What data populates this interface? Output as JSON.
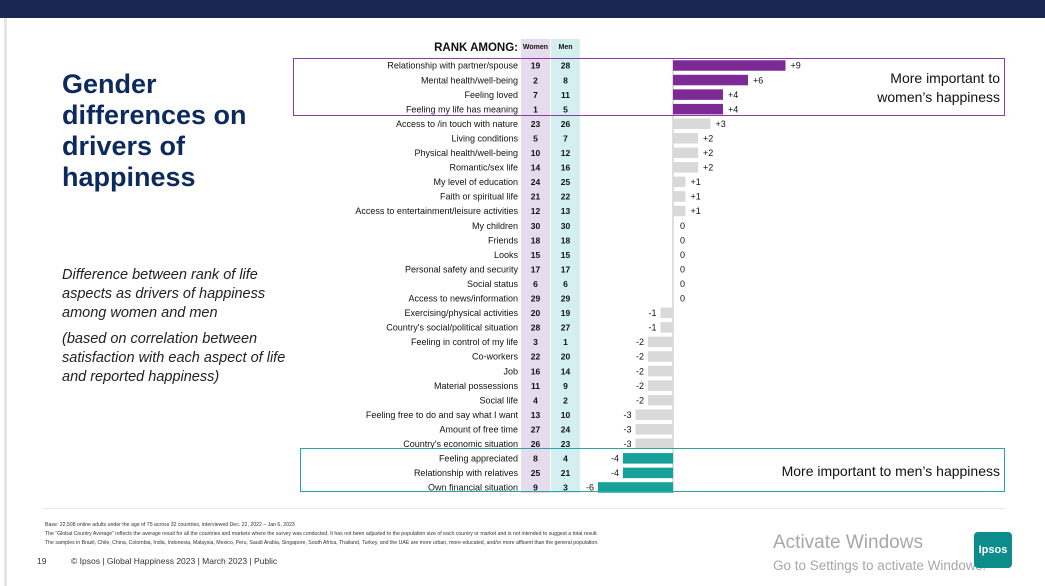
{
  "slide": {
    "title": "Gender differences on drivers of happiness",
    "description": "Difference between rank of life aspects as drivers of happiness among women and men",
    "description_note": "(based on correlation between satisfaction with each aspect of life and reported happiness)",
    "rank_header": "RANK AMONG:",
    "col_women": "Women",
    "col_men": "Men",
    "note_women": "More important to women’s happiness",
    "note_men": "More important to men’s happiness"
  },
  "colors": {
    "women": "#7b2a96",
    "men": "#17a19b",
    "neutral": "#d9d9d9"
  },
  "chart_data": {
    "type": "bar",
    "orientation": "horizontal",
    "categories": [
      "Relationship with partner/spouse",
      "Mental health/well-being",
      "Feeling loved",
      "Feeling my life has meaning",
      "Access to /in touch with nature",
      "Living conditions",
      "Physical health/well-being",
      "Romantic/sex life",
      "My level of education",
      "Faith or spiritual life",
      "Access to entertainment/leisure activities",
      "My children",
      "Friends",
      "Looks",
      "Personal safety and security",
      "Social status",
      "Access to news/information",
      "Exercising/physical activities",
      "Country's social/political situation",
      "Feeling in control of my life",
      "Co-workers",
      "Job",
      "Material possessions",
      "Social life",
      "Feeling free to do and say what I want",
      "Amount of free time",
      "Country's economic situation",
      "Feeling appreciated",
      "Relationship with relatives",
      "Own financial situation"
    ],
    "rank_women": [
      19,
      2,
      7,
      1,
      23,
      5,
      10,
      14,
      24,
      21,
      12,
      30,
      18,
      15,
      17,
      6,
      29,
      20,
      28,
      3,
      22,
      16,
      11,
      4,
      13,
      27,
      26,
      8,
      25,
      9
    ],
    "rank_men": [
      28,
      8,
      11,
      5,
      26,
      7,
      12,
      16,
      25,
      22,
      13,
      30,
      18,
      15,
      17,
      6,
      29,
      19,
      27,
      1,
      20,
      14,
      9,
      2,
      10,
      24,
      23,
      4,
      21,
      3
    ],
    "values": [
      9,
      6,
      4,
      4,
      3,
      2,
      2,
      2,
      1,
      1,
      1,
      0,
      0,
      0,
      0,
      0,
      0,
      -1,
      -1,
      -2,
      -2,
      -2,
      -2,
      -2,
      -3,
      -3,
      -3,
      -4,
      -4,
      -6
    ],
    "value_labels": [
      "+9",
      "+6",
      "+4",
      "+4",
      "+3",
      "+2",
      "+2",
      "+2",
      "+1",
      "+1",
      "+1",
      "0",
      "0",
      "0",
      "0",
      "0",
      "0",
      "-1",
      "-1",
      "-2",
      "-2",
      "-2",
      "-2",
      "-2",
      "-3",
      "-3",
      "-3",
      "-4",
      "-4",
      "-6"
    ],
    "highlight_women": [
      0,
      1,
      2,
      3
    ],
    "highlight_men": [
      27,
      28,
      29
    ]
  },
  "footnotes": {
    "base": "Base: 22,508 online adults under the age of 75 across 32 countries, interviewed Dec. 22, 2022 – Jan 6, 2023",
    "global_avg": "The “Global Country Average” reflects the average result for all the countries and markets where the survey was conducted. It has not been adjusted to the population size of each country or market and is not intended to suggest a total result.",
    "samples": "The samples in Brazil, Chile, China, Colombia, India, Indonesia, Malaysia, Mexico, Peru, Saudi Arabia, Singapore, South Africa, Thailand, Turkey, and the UAE are more urban, more educated, and/or more affluent than the general population."
  },
  "footer": {
    "page_number": "19",
    "text": "© Ipsos | Global Happiness 2023 | March 2023 | Public"
  },
  "watermark": {
    "line1": "Activate Windows",
    "line2": "Go to Settings to activate Windows."
  },
  "logo": {
    "text": "Ipsos"
  }
}
